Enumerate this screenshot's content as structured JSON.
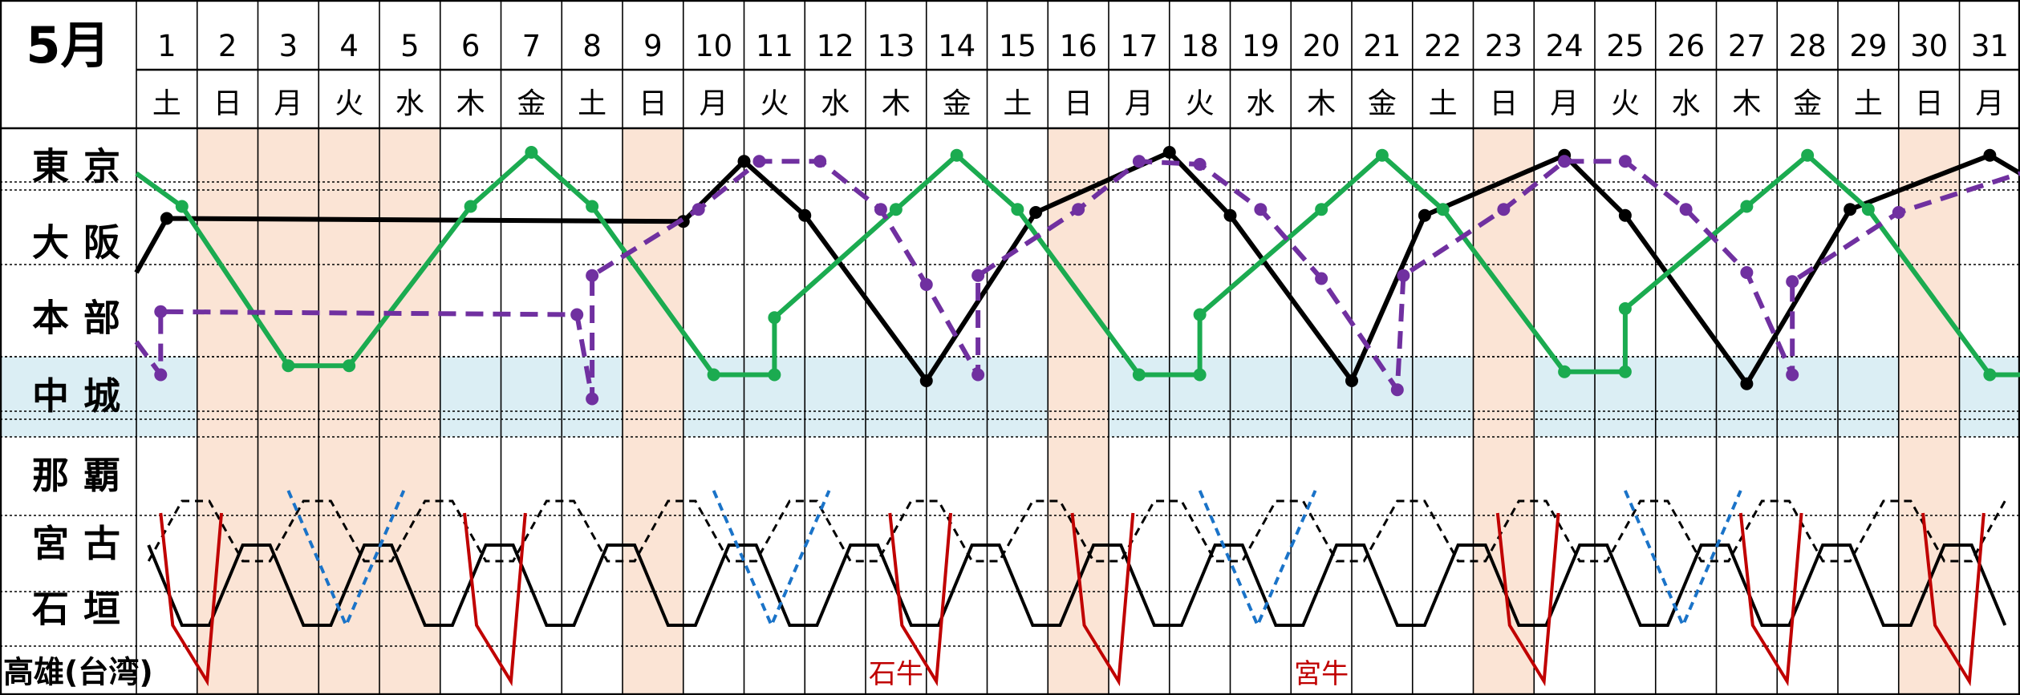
{
  "month_label": "5月",
  "days": [
    {
      "d": "1",
      "w": "土",
      "t": "sat"
    },
    {
      "d": "2",
      "w": "日",
      "t": "hol"
    },
    {
      "d": "3",
      "w": "月",
      "t": "hol"
    },
    {
      "d": "4",
      "w": "火",
      "t": "hol"
    },
    {
      "d": "5",
      "w": "水",
      "t": "hol"
    },
    {
      "d": "6",
      "w": "木",
      "t": "wd"
    },
    {
      "d": "7",
      "w": "金",
      "t": "wd"
    },
    {
      "d": "8",
      "w": "土",
      "t": "sat"
    },
    {
      "d": "9",
      "w": "日",
      "t": "hol"
    },
    {
      "d": "10",
      "w": "月",
      "t": "wd"
    },
    {
      "d": "11",
      "w": "火",
      "t": "wd"
    },
    {
      "d": "12",
      "w": "水",
      "t": "wd"
    },
    {
      "d": "13",
      "w": "木",
      "t": "wd"
    },
    {
      "d": "14",
      "w": "金",
      "t": "wd"
    },
    {
      "d": "15",
      "w": "土",
      "t": "sat"
    },
    {
      "d": "16",
      "w": "日",
      "t": "hol"
    },
    {
      "d": "17",
      "w": "月",
      "t": "wd"
    },
    {
      "d": "18",
      "w": "火",
      "t": "wd"
    },
    {
      "d": "19",
      "w": "水",
      "t": "wd"
    },
    {
      "d": "20",
      "w": "木",
      "t": "wd"
    },
    {
      "d": "21",
      "w": "金",
      "t": "wd"
    },
    {
      "d": "22",
      "w": "土",
      "t": "sat"
    },
    {
      "d": "23",
      "w": "日",
      "t": "hol"
    },
    {
      "d": "24",
      "w": "月",
      "t": "wd"
    },
    {
      "d": "25",
      "w": "火",
      "t": "wd"
    },
    {
      "d": "26",
      "w": "水",
      "t": "wd"
    },
    {
      "d": "27",
      "w": "木",
      "t": "wd"
    },
    {
      "d": "28",
      "w": "金",
      "t": "wd"
    },
    {
      "d": "29",
      "w": "土",
      "t": "sat"
    },
    {
      "d": "30",
      "w": "日",
      "t": "hol"
    },
    {
      "d": "31",
      "w": "月",
      "t": "wd"
    }
  ],
  "rows": [
    "東京",
    "大阪",
    "本部",
    "中城",
    "那覇",
    "宮古",
    "石垣",
    "高雄(台湾)"
  ],
  "annotations": [
    {
      "text": "石牛",
      "day": 13
    },
    {
      "text": "宮牛",
      "day": 20
    }
  ],
  "colors": {
    "weekday": "#000000",
    "saturday": "#1f5fbf",
    "holiday": "#d42020",
    "holiday_fill": "#fbe4d5",
    "naha_fill": "#dbeef4",
    "black": "#000000",
    "green": "#1bab50",
    "purple": "#7030a0",
    "red": "#c00000",
    "blue": "#1a73c8"
  },
  "routes": [
    {
      "name": "",
      "color": "black",
      "dash": false,
      "points": [
        [
          0,
          3.4
        ],
        [
          0.5,
          2.5
        ],
        [
          9,
          2.55
        ],
        [
          10,
          1.55
        ],
        [
          11,
          2.45
        ],
        [
          13,
          5.2
        ],
        [
          14.8,
          2.4
        ],
        [
          17,
          1.4
        ],
        [
          18,
          2.45
        ],
        [
          20,
          5.2
        ],
        [
          21.2,
          2.45
        ],
        [
          23.5,
          1.45
        ],
        [
          24.5,
          2.45
        ],
        [
          26.5,
          5.25
        ],
        [
          28.2,
          2.35
        ],
        [
          30.5,
          1.45
        ],
        [
          31,
          1.75
        ]
      ]
    },
    {
      "name": "",
      "color": "green",
      "dash": false,
      "points": [
        [
          0,
          1.75
        ],
        [
          0.75,
          2.3
        ],
        [
          2.5,
          4.95
        ],
        [
          3.5,
          4.95
        ],
        [
          5.5,
          2.3
        ],
        [
          6.5,
          1.4
        ],
        [
          7.5,
          2.3
        ],
        [
          9.5,
          5.1
        ],
        [
          10.5,
          5.1
        ],
        [
          10.5,
          4.15
        ],
        [
          12.5,
          2.35
        ],
        [
          13.5,
          1.45
        ],
        [
          14.5,
          2.35
        ],
        [
          16.5,
          5.1
        ],
        [
          17.5,
          5.1
        ],
        [
          17.5,
          4.1
        ],
        [
          19.5,
          2.35
        ],
        [
          20.5,
          1.45
        ],
        [
          21.5,
          2.35
        ],
        [
          23.5,
          5.05
        ],
        [
          24.5,
          5.05
        ],
        [
          24.5,
          4.0
        ],
        [
          26.5,
          2.3
        ],
        [
          27.5,
          1.45
        ],
        [
          28.5,
          2.35
        ],
        [
          30.5,
          5.1
        ],
        [
          31,
          5.1
        ]
      ]
    },
    {
      "name": "",
      "color": "purple",
      "dash": true,
      "points": [
        [
          0,
          4.55
        ],
        [
          0.4,
          5.1
        ],
        [
          0.4,
          4.05
        ],
        [
          7.25,
          4.1
        ],
        [
          7.5,
          5.5
        ],
        [
          7.5,
          3.45
        ],
        [
          9.25,
          2.35
        ],
        [
          10.25,
          1.55
        ],
        [
          11.25,
          1.55
        ],
        [
          12.25,
          2.35
        ],
        [
          13.0,
          3.6
        ],
        [
          13.85,
          5.1
        ],
        [
          13.85,
          3.45
        ],
        [
          15.5,
          2.35
        ],
        [
          16.5,
          1.55
        ],
        [
          17.5,
          1.6
        ],
        [
          18.5,
          2.35
        ],
        [
          19.5,
          3.5
        ],
        [
          20.75,
          5.35
        ],
        [
          20.85,
          3.45
        ],
        [
          22.5,
          2.35
        ],
        [
          23.5,
          1.55
        ],
        [
          24.5,
          1.55
        ],
        [
          25.5,
          2.35
        ],
        [
          26.5,
          3.4
        ],
        [
          27.25,
          5.1
        ],
        [
          27.25,
          3.55
        ],
        [
          29,
          2.4
        ],
        [
          31,
          1.75
        ]
      ]
    }
  ]
}
